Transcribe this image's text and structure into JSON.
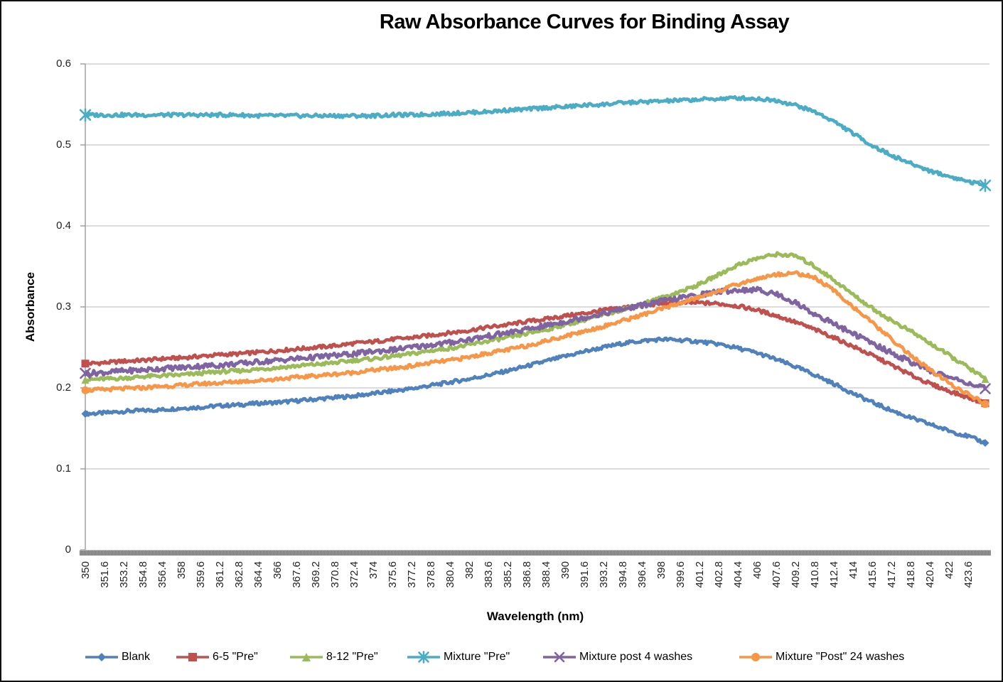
{
  "chart_data": {
    "type": "line",
    "title": "Raw Absorbance Curves for Binding Assay",
    "xlabel": "Wavelength (nm)",
    "ylabel": "Absorbance",
    "xlim": [
      350,
      425
    ],
    "ylim": [
      0,
      0.6
    ],
    "grid": "horizontal",
    "legend_position": "bottom",
    "y_tick_labels": [
      "0",
      "0.1",
      "0.2",
      "0.3",
      "0.4",
      "0.5",
      "0.6"
    ],
    "x_tick_labels": [
      "350",
      "351.6",
      "353.2",
      "354.8",
      "356.4",
      "358",
      "359.6",
      "361.2",
      "362.8",
      "364.4",
      "366",
      "367.6",
      "369.2",
      "370.8",
      "372.4",
      "374",
      "375.6",
      "377.2",
      "378.8",
      "380.4",
      "382",
      "383.6",
      "385.2",
      "386.8",
      "388.4",
      "390",
      "391.6",
      "393.2",
      "394.8",
      "396.4",
      "398",
      "399.6",
      "401.2",
      "402.8",
      "404.4",
      "406",
      "407.6",
      "409.2",
      "410.8",
      "412.4",
      "414",
      "415.6",
      "417.2",
      "418.8",
      "420.4",
      "422",
      "423.6"
    ],
    "x": [
      350,
      351.6,
      353.2,
      354.8,
      356.4,
      358,
      359.6,
      361.2,
      362.8,
      364.4,
      366,
      367.6,
      369.2,
      370.8,
      372.4,
      374,
      375.6,
      377.2,
      378.8,
      380.4,
      382,
      383.6,
      385.2,
      386.8,
      388.4,
      390,
      391.6,
      393.2,
      394.8,
      396.4,
      398,
      399.6,
      401.2,
      402.8,
      404.4,
      406,
      407.6,
      409.2,
      410.8,
      412.4,
      414,
      415.6,
      417.2,
      418.8,
      420.4,
      422,
      423.6,
      425
    ],
    "series": [
      {
        "name": "Blank",
        "color": "#4F81BD",
        "marker": "diamond",
        "values": [
          0.168,
          0.169,
          0.171,
          0.172,
          0.173,
          0.175,
          0.176,
          0.178,
          0.179,
          0.181,
          0.182,
          0.184,
          0.186,
          0.188,
          0.19,
          0.193,
          0.196,
          0.199,
          0.203,
          0.207,
          0.211,
          0.216,
          0.221,
          0.227,
          0.233,
          0.239,
          0.245,
          0.25,
          0.255,
          0.258,
          0.26,
          0.259,
          0.257,
          0.254,
          0.249,
          0.243,
          0.235,
          0.226,
          0.216,
          0.205,
          0.193,
          0.182,
          0.172,
          0.163,
          0.155,
          0.147,
          0.14,
          0.132
        ]
      },
      {
        "name": "6-5 \"Pre\"",
        "color": "#C0504D",
        "marker": "square",
        "values": [
          0.23,
          0.231,
          0.233,
          0.234,
          0.236,
          0.237,
          0.239,
          0.241,
          0.242,
          0.244,
          0.246,
          0.248,
          0.25,
          0.252,
          0.255,
          0.257,
          0.26,
          0.262,
          0.265,
          0.268,
          0.271,
          0.275,
          0.278,
          0.282,
          0.285,
          0.289,
          0.292,
          0.296,
          0.299,
          0.302,
          0.304,
          0.305,
          0.305,
          0.304,
          0.301,
          0.296,
          0.289,
          0.281,
          0.272,
          0.262,
          0.251,
          0.24,
          0.228,
          0.216,
          0.205,
          0.196,
          0.188,
          0.181
        ]
      },
      {
        "name": "8-12 \"Pre\"",
        "color": "#9BBB59",
        "marker": "triangle",
        "values": [
          0.21,
          0.211,
          0.212,
          0.214,
          0.215,
          0.216,
          0.218,
          0.22,
          0.221,
          0.223,
          0.225,
          0.227,
          0.229,
          0.231,
          0.234,
          0.236,
          0.239,
          0.242,
          0.246,
          0.249,
          0.253,
          0.258,
          0.262,
          0.267,
          0.272,
          0.278,
          0.284,
          0.29,
          0.297,
          0.304,
          0.311,
          0.319,
          0.328,
          0.34,
          0.352,
          0.36,
          0.365,
          0.363,
          0.35,
          0.333,
          0.315,
          0.298,
          0.283,
          0.27,
          0.255,
          0.24,
          0.225,
          0.211
        ]
      },
      {
        "name": "Mixture \"Pre\"",
        "color": "#4BACC6",
        "marker": "star",
        "values": [
          0.537,
          0.537,
          0.537,
          0.537,
          0.537,
          0.537,
          0.537,
          0.537,
          0.537,
          0.536,
          0.536,
          0.536,
          0.536,
          0.536,
          0.536,
          0.536,
          0.537,
          0.537,
          0.538,
          0.539,
          0.54,
          0.541,
          0.543,
          0.544,
          0.546,
          0.547,
          0.549,
          0.55,
          0.552,
          0.553,
          0.554,
          0.555,
          0.556,
          0.557,
          0.558,
          0.557,
          0.555,
          0.549,
          0.541,
          0.529,
          0.514,
          0.499,
          0.487,
          0.477,
          0.468,
          0.461,
          0.455,
          0.45
        ]
      },
      {
        "name": "Mixture post 4 washes",
        "color": "#8064A2",
        "marker": "x",
        "values": [
          0.218,
          0.219,
          0.221,
          0.222,
          0.224,
          0.225,
          0.227,
          0.228,
          0.23,
          0.232,
          0.234,
          0.236,
          0.238,
          0.24,
          0.242,
          0.245,
          0.247,
          0.25,
          0.253,
          0.256,
          0.26,
          0.264,
          0.268,
          0.272,
          0.277,
          0.282,
          0.287,
          0.292,
          0.297,
          0.302,
          0.307,
          0.311,
          0.315,
          0.319,
          0.321,
          0.321,
          0.316,
          0.305,
          0.291,
          0.279,
          0.267,
          0.255,
          0.243,
          0.232,
          0.221,
          0.213,
          0.206,
          0.199
        ]
      },
      {
        "name": "Mixture \"Post\" 24 washes",
        "color": "#F79646",
        "marker": "circle",
        "values": [
          0.197,
          0.198,
          0.199,
          0.2,
          0.202,
          0.203,
          0.205,
          0.206,
          0.208,
          0.209,
          0.211,
          0.213,
          0.215,
          0.217,
          0.219,
          0.222,
          0.224,
          0.227,
          0.231,
          0.234,
          0.238,
          0.243,
          0.247,
          0.252,
          0.258,
          0.264,
          0.27,
          0.276,
          0.283,
          0.29,
          0.297,
          0.305,
          0.312,
          0.32,
          0.328,
          0.335,
          0.34,
          0.342,
          0.336,
          0.32,
          0.3,
          0.28,
          0.26,
          0.24,
          0.222,
          0.206,
          0.192,
          0.18
        ]
      }
    ]
  }
}
